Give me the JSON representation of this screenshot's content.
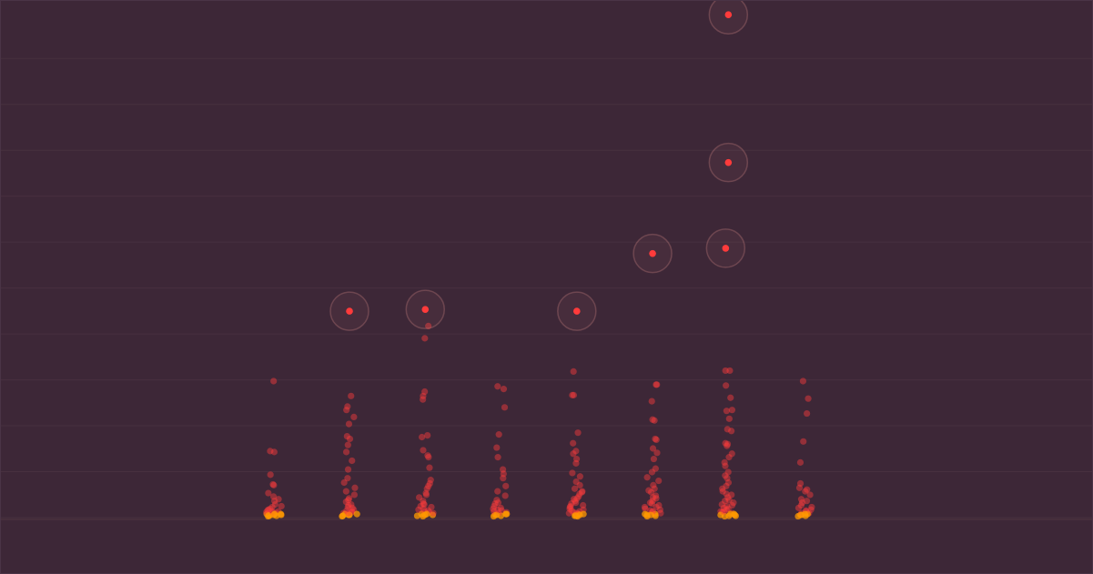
{
  "colors": {
    "background": "#3d2737",
    "gridline": "#47303f",
    "baseline": "#4e3442",
    "point": "#ff3b3b",
    "dense_point": "#ff9a00",
    "halo": "#c07a7a"
  },
  "chart_data": {
    "type": "scatter",
    "title": "",
    "xlabel": "",
    "ylabel": "",
    "grid": true,
    "legend": "none",
    "xlim": [
      -2.6,
      11.8
    ],
    "ylim": [
      0,
      57
    ],
    "categories": [
      1,
      2,
      3,
      4,
      5,
      6,
      7,
      8
    ],
    "outliers": [
      {
        "x": 2,
        "y": 23.6
      },
      {
        "x": 3,
        "y": 23.8
      },
      {
        "x": 5,
        "y": 23.6
      },
      {
        "x": 6,
        "y": 30.2
      },
      {
        "x": 7,
        "y": 30.8
      },
      {
        "x": 7,
        "y": 40.6
      },
      {
        "x": 7,
        "y": 57.5
      }
    ],
    "groups": [
      {
        "x": 1,
        "y": [
          15.5,
          7.4,
          7.5,
          4.8,
          3.7,
          3.6,
          2.7,
          2.0,
          1.4,
          1.1,
          0.9,
          0.6,
          0.4,
          0.3,
          0.2,
          0.1,
          0.1,
          0.05,
          1.8,
          2.3,
          0.8,
          0.5,
          0.3,
          1.2,
          0.7,
          0.4,
          0.2,
          0.15,
          0.6,
          0.3
        ]
      },
      {
        "x": 2,
        "y": [
          13.8,
          12.6,
          12.2,
          11.4,
          10.6,
          9.2,
          8.9,
          8.2,
          7.4,
          6.4,
          5.4,
          4.4,
          3.9,
          3.3,
          2.9,
          2.5,
          2.1,
          1.7,
          1.4,
          1.1,
          0.8,
          0.6,
          0.4,
          0.3,
          0.2,
          0.1,
          0.05,
          1.9,
          1.0,
          0.5,
          0.3,
          0.7,
          1.3,
          0.2,
          0.4
        ]
      },
      {
        "x": 3,
        "y": [
          21.8,
          20.4,
          14.3,
          13.8,
          13.4,
          9.3,
          9.1,
          7.6,
          7.0,
          6.8,
          5.6,
          4.2,
          3.8,
          3.5,
          3.2,
          2.7,
          2.2,
          1.8,
          1.5,
          1.2,
          0.9,
          0.7,
          0.5,
          0.3,
          0.2,
          0.1,
          0.05,
          2.5,
          1.4,
          0.8,
          0.4,
          0.6,
          1.1,
          0.3,
          0.2
        ]
      },
      {
        "x": 4,
        "y": [
          14.9,
          14.6,
          12.5,
          9.4,
          7.9,
          6.8,
          5.4,
          4.9,
          4.4,
          3.5,
          2.9,
          2.4,
          1.9,
          1.5,
          1.2,
          0.9,
          0.7,
          0.5,
          0.3,
          0.2,
          0.1,
          0.05,
          1.6,
          1.0,
          0.6,
          0.4,
          0.2,
          0.8,
          0.3
        ]
      },
      {
        "x": 5,
        "y": [
          16.6,
          13.9,
          13.9,
          9.6,
          8.4,
          7.5,
          7.2,
          6.6,
          6.1,
          5.0,
          4.6,
          4.0,
          3.6,
          3.2,
          2.9,
          2.6,
          2.3,
          2.0,
          1.8,
          1.5,
          1.3,
          1.1,
          0.9,
          0.7,
          0.5,
          0.4,
          0.3,
          0.2,
          0.1,
          0.05,
          2.8,
          2.1,
          1.6,
          1.2,
          0.8,
          0.6,
          0.4,
          0.3,
          0.2,
          0.1
        ]
      },
      {
        "x": 6,
        "y": [
          15.1,
          15.1,
          13.2,
          11.1,
          11.0,
          8.9,
          8.8,
          7.8,
          7.3,
          6.6,
          5.5,
          5.1,
          4.5,
          4.1,
          3.6,
          3.2,
          2.8,
          2.4,
          2.1,
          1.8,
          1.5,
          1.3,
          1.1,
          0.9,
          0.7,
          0.5,
          0.4,
          0.3,
          0.2,
          0.1,
          0.05,
          3.0,
          2.2,
          1.6,
          1.1,
          0.8,
          0.6,
          0.3,
          0.2
        ]
      },
      {
        "x": 7,
        "y": [
          16.7,
          16.7,
          15.0,
          13.6,
          12.1,
          12.2,
          11.2,
          10.0,
          9.8,
          8.4,
          8.1,
          8.3,
          7.2,
          6.8,
          6.2,
          5.8,
          5.1,
          4.7,
          4.4,
          3.9,
          3.5,
          3.2,
          2.9,
          2.5,
          2.2,
          1.9,
          1.6,
          1.4,
          1.2,
          1.0,
          0.8,
          0.6,
          0.5,
          0.4,
          0.3,
          0.2,
          0.1,
          0.05,
          2.6,
          1.8,
          1.3,
          0.9,
          0.6,
          0.3,
          0.2,
          0.1
        ]
      },
      {
        "x": 8,
        "y": [
          15.5,
          13.5,
          11.8,
          8.6,
          6.2,
          3.8,
          3.3,
          3.1,
          2.9,
          2.5,
          2.0,
          1.6,
          1.3,
          1.0,
          0.8,
          0.6,
          0.4,
          0.3,
          0.2,
          0.1,
          0.05,
          1.8,
          1.1,
          0.7,
          0.4,
          0.2,
          0.3
        ]
      }
    ]
  }
}
